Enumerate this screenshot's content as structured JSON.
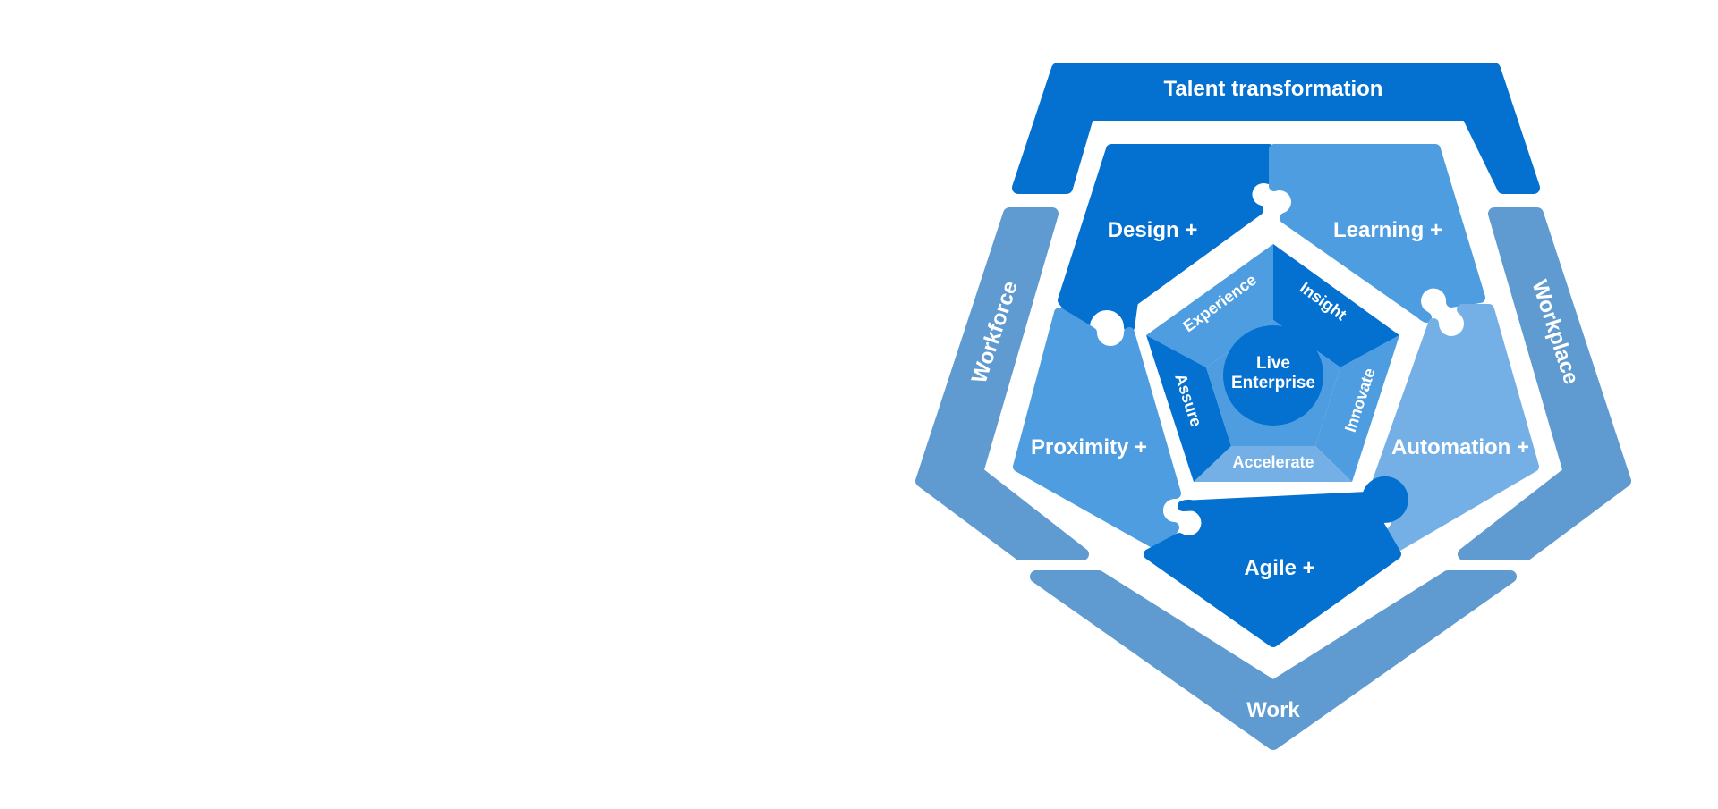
{
  "diagram": {
    "outer_ring": {
      "top": "Talent transformation",
      "left": "Workforce",
      "right": "Workplace",
      "bottom": "Work"
    },
    "pieces": {
      "design": "Design +",
      "learning": "Learning +",
      "proximity": "Proximity +",
      "automation": "Automation +",
      "agile": "Agile +"
    },
    "inner_ring": {
      "experience": "Experience",
      "insight": "Insight",
      "assure": "Assure",
      "innovate": "Innovate",
      "accelerate": "Accelerate"
    },
    "core": {
      "line1": "Live",
      "line2": "Enterprise"
    },
    "colors": {
      "dark_blue": "#0470d0",
      "mid_blue": "#4d9de0",
      "light_blue": "#74b0e6",
      "steel_blue": "#5f9bd1",
      "background": "#ffffff"
    }
  }
}
